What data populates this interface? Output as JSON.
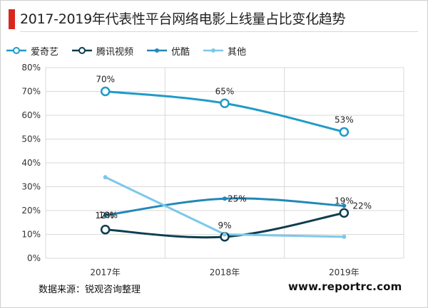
{
  "title": "2017-2019年代表性平台网络电影上线量占比变化趋势",
  "source": "数据来源：锐观咨询整理",
  "website": "www.reportrc.com",
  "colors": {
    "title_accent": "#d9271e",
    "iqiyi": "#1f9bc7",
    "tencent": "#0d3d4f",
    "youku": "#2188b8",
    "other": "#7cc8ea",
    "grid": "#d9d9d9",
    "axis_text": "#333333"
  },
  "chart_data": {
    "type": "line",
    "categories": [
      "2017年",
      "2018年",
      "2019年"
    ],
    "ylim": [
      0,
      80
    ],
    "y_ticks": [
      "0%",
      "10%",
      "20%",
      "30%",
      "40%",
      "50%",
      "60%",
      "70%",
      "80%"
    ],
    "grid": true,
    "legend_position": "top-left",
    "series": [
      {
        "name": "爱奇艺",
        "values": [
          70,
          65,
          53
        ],
        "labels": [
          "70%",
          "65%",
          "53%"
        ],
        "marker": "hollow-circle",
        "smooth": true
      },
      {
        "name": "腾讯视频",
        "values": [
          12,
          9,
          19
        ],
        "labels": [
          "12%",
          "9%",
          "19%"
        ],
        "marker": "hollow-circle",
        "smooth": true
      },
      {
        "name": "优酷",
        "values": [
          18,
          25,
          22
        ],
        "labels": [
          "18%",
          "25%",
          "22%"
        ],
        "marker": "dot",
        "smooth": true
      },
      {
        "name": "其他",
        "values": [
          34,
          10,
          9
        ],
        "labels": [],
        "marker": "dot",
        "smooth": false
      }
    ]
  }
}
